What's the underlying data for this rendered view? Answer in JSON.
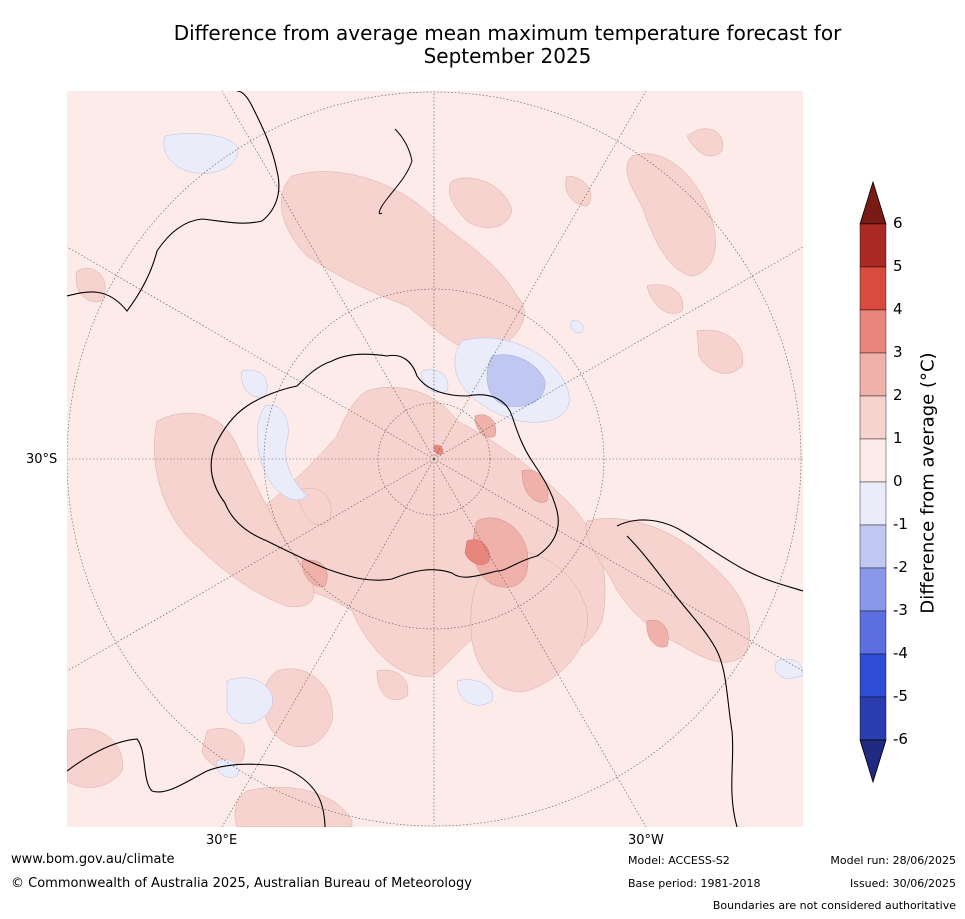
{
  "title": {
    "line1": "Difference from average mean maximum temperature forecast for",
    "line2": "September 2025"
  },
  "map": {
    "projection": "south-polar-stereographic",
    "lat_labels": [
      "30°S"
    ],
    "lon_labels": [
      "30°E",
      "30°W"
    ]
  },
  "colorbar": {
    "title": "Difference from average (°C)",
    "ticks": [
      "6",
      "5",
      "4",
      "3",
      "2",
      "1",
      "0",
      "-1",
      "-2",
      "-3",
      "-4",
      "-5",
      "-6"
    ],
    "colors": [
      "#7a1a14",
      "#a82a22",
      "#d94a3f",
      "#e8867d",
      "#efb1aa",
      "#f6d3cf",
      "#fcebe9",
      "#eaecf9",
      "#c0c7f0",
      "#8a98ea",
      "#5b6fe0",
      "#2f4ed6",
      "#2a3db0",
      "#1f2a80"
    ]
  },
  "footer": {
    "website": "www.bom.gov.au/climate",
    "copyright": "© Commonwealth of Australia 2025, Australian Bureau of Meteorology",
    "model": "Model: ACCESS-S2",
    "base_period": "Base period: 1981-2018",
    "model_run": "Model run: 28/06/2025",
    "issued": "Issued: 30/06/2025",
    "disclaimer": "Boundaries are not considered authoritative"
  }
}
